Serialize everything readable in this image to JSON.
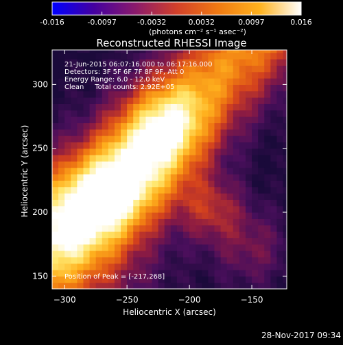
{
  "colorbar": {
    "ticks": [
      "-0.016",
      "-0.0097",
      "-0.0032",
      "0.0032",
      "0.0097",
      "0.016"
    ],
    "unit_label": "(photons cm⁻² s⁻¹ asec⁻²)",
    "colors": [
      "#0000ff",
      "#4400a0",
      "#8a1a6c",
      "#d2402a",
      "#f07a12",
      "#ffb21e",
      "#ffffff"
    ]
  },
  "chart_data": {
    "type": "heatmap",
    "title": "Reconstructed RHESSI Image",
    "xlabel": "Heliocentric X (arcsec)",
    "ylabel": "Heliocentric Y (arcsec)",
    "xlim": [
      -310,
      -122
    ],
    "ylim": [
      140,
      327
    ],
    "x_ticks": [
      -300,
      -250,
      -200,
      -150
    ],
    "y_ticks": [
      150,
      200,
      250,
      300
    ],
    "annotations": [
      "21-Jun-2015 06:07:16.000 to 06:17:16.000",
      "Detectors: 3F 5F 6F 7F 8F 9F, Att 0",
      "Energy Range: 6.0 - 12.0 keV",
      "Clean     Total counts: 2.92E+05"
    ],
    "peak_text": "Position of Peak = [-217,268]",
    "peak": {
      "x": -217,
      "y": 268
    },
    "colormap": [
      "#1a0a3a",
      "#4a0f5c",
      "#8a1a44",
      "#d2401e",
      "#f07a12",
      "#ffb21e",
      "#ffe870",
      "#ffffff"
    ]
  },
  "footer": {
    "timestamp": "28-Nov-2017 09:34"
  }
}
